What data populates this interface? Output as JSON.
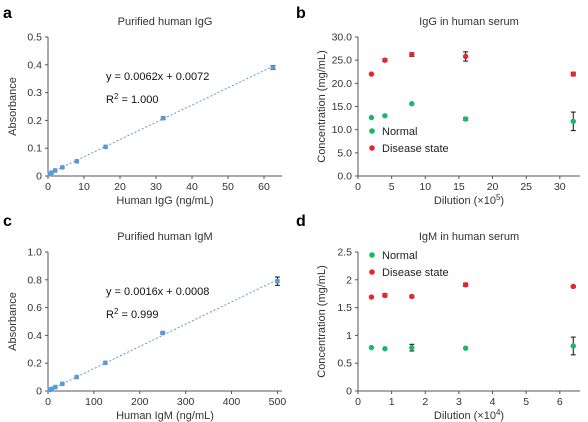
{
  "colors": {
    "calib": "#5b9bd5",
    "calib_line": "#5b9bd5",
    "normal": "#1ab865",
    "disease": "#e0282e",
    "axis": "#555555"
  },
  "chart_data": [
    {
      "id": "a",
      "panel_label": "a",
      "type": "scatter",
      "title": "Purified human IgG",
      "xlabel": "Human IgG (ng/mL)",
      "ylabel": "Absorbance",
      "xlim": [
        0,
        65
      ],
      "ylim": [
        0,
        0.5
      ],
      "xticks": [
        0,
        10,
        20,
        30,
        40,
        50,
        60
      ],
      "yticks": [
        0,
        0.1,
        0.2,
        0.3,
        0.4,
        0.5
      ],
      "ytick_labels": [
        "0",
        "0.1",
        "0.2",
        "0.3",
        "0.4",
        "0.5"
      ],
      "series": [
        {
          "x": [
            0.5,
            1,
            2,
            4,
            8,
            16,
            32,
            62.5
          ],
          "y": [
            0.007,
            0.012,
            0.02,
            0.031,
            0.053,
            0.105,
            0.208,
            0.39
          ],
          "err": [
            0,
            0,
            0,
            0,
            0,
            0,
            0.004,
            0.007
          ],
          "color": "calib"
        }
      ],
      "fit": {
        "slope": 0.0062,
        "intercept": 0.0072
      },
      "equation": "y = 0.0062x + 0.0072",
      "r2": {
        "label": "R",
        "sup": "2",
        "value": " = 1.000"
      },
      "grid": false
    },
    {
      "id": "b",
      "panel_label": "b",
      "type": "scatter",
      "title": "IgG in human serum",
      "xlabel": "Dilution (×10",
      "xlabel_sup": "5",
      "xlabel_end": ")",
      "ylabel": "Concentration (mg/mL)",
      "xlim": [
        0,
        33
      ],
      "ylim": [
        0,
        30
      ],
      "xticks": [
        0,
        5,
        10,
        15,
        20,
        25,
        30
      ],
      "yticks": [
        0,
        5,
        10,
        15,
        20,
        25,
        30
      ],
      "ytick_labels": [
        "0.0",
        "5.0",
        "10.0",
        "15.0",
        "20.0",
        "25.0",
        "30.0"
      ],
      "series": [
        {
          "name": "Normal",
          "x": [
            2,
            4,
            8,
            16,
            32
          ],
          "y": [
            12.6,
            13.0,
            15.6,
            12.3,
            11.8
          ],
          "err": [
            0,
            0,
            0,
            0.3,
            2.0
          ],
          "color": "normal"
        },
        {
          "name": "Disease state",
          "x": [
            2,
            4,
            8,
            16,
            32
          ],
          "y": [
            22.0,
            25.0,
            26.2,
            25.8,
            22.0
          ],
          "err": [
            0,
            0.3,
            0.4,
            1.0,
            0.4
          ],
          "color": "disease"
        }
      ],
      "legend": "bottom-left",
      "grid": false
    },
    {
      "id": "c",
      "panel_label": "c",
      "type": "scatter",
      "title": "Purified human IgM",
      "xlabel": "Human IgM (ng/mL)",
      "ylabel": "Absorbance",
      "xlim": [
        0,
        510
      ],
      "ylim": [
        0,
        1
      ],
      "xticks": [
        0,
        100,
        200,
        300,
        400,
        500
      ],
      "yticks": [
        0,
        0.2,
        0.4,
        0.6,
        0.8,
        1
      ],
      "ytick_labels": [
        "0",
        "0.2",
        "0.4",
        "0.6",
        "0.8",
        "1.0"
      ],
      "series": [
        {
          "x": [
            4,
            8,
            16,
            31.25,
            62.5,
            125,
            250,
            500
          ],
          "y": [
            0.008,
            0.015,
            0.028,
            0.052,
            0.1,
            0.203,
            0.418,
            0.79
          ],
          "err": [
            0,
            0,
            0,
            0,
            0,
            0,
            0.006,
            0.03
          ],
          "color": "calib"
        }
      ],
      "fit": {
        "slope": 0.0016,
        "intercept": 0.0008
      },
      "equation": "y = 0.0016x + 0.0008",
      "r2": {
        "label": "R",
        "sup": "2",
        "value": " = 0.999"
      },
      "grid": false
    },
    {
      "id": "d",
      "panel_label": "d",
      "type": "scatter",
      "title": "IgM in human serum",
      "xlabel": "Dilution (×10",
      "xlabel_sup": "4",
      "xlabel_end": ")",
      "ylabel": "Concentration (mg/mL)",
      "xlim": [
        0,
        6.6
      ],
      "ylim": [
        0,
        2.5
      ],
      "xticks": [
        0,
        1,
        2,
        3,
        4,
        5,
        6
      ],
      "yticks": [
        0,
        0.5,
        1,
        1.5,
        2,
        2.5
      ],
      "ytick_labels": [
        "0",
        "0.5",
        "1",
        "1.5",
        "2",
        "2.5"
      ],
      "series": [
        {
          "name": "Normal",
          "x": [
            0.4,
            0.8,
            1.6,
            3.2,
            6.4
          ],
          "y": [
            0.78,
            0.76,
            0.78,
            0.77,
            0.81
          ],
          "err": [
            0,
            0,
            0.06,
            0,
            0.16
          ],
          "color": "normal"
        },
        {
          "name": "Disease state",
          "x": [
            0.4,
            0.8,
            1.6,
            3.2,
            6.4
          ],
          "y": [
            1.69,
            1.72,
            1.7,
            1.91,
            1.88
          ],
          "err": [
            0,
            0.03,
            0.02,
            0.03,
            0.02
          ],
          "color": "disease"
        }
      ],
      "legend": "top-left",
      "grid": false
    }
  ]
}
